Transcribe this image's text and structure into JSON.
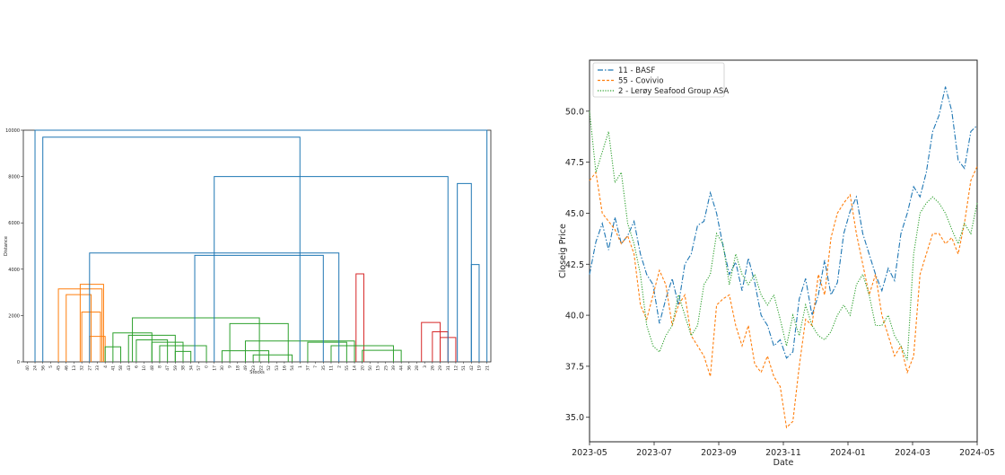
{
  "chart_data": [
    {
      "type": "dendrogram",
      "xlabel": "Stocks",
      "ylabel": "Distance",
      "ylim": [
        0,
        10000
      ],
      "yticks": [
        0,
        2000,
        4000,
        6000,
        8000,
        10000
      ],
      "leaves": [
        "40",
        "24",
        "56",
        "5",
        "45",
        "46",
        "13",
        "32",
        "27",
        "33",
        "4",
        "41",
        "58",
        "43",
        "6",
        "10",
        "48",
        "8",
        "47",
        "59",
        "38",
        "34",
        "57",
        "0",
        "17",
        "30",
        "9",
        "18",
        "49",
        "23",
        "22",
        "52",
        "53",
        "16",
        "54",
        "1",
        "37",
        "7",
        "35",
        "11",
        "2",
        "55",
        "14",
        "20",
        "50",
        "15",
        "25",
        "39",
        "44",
        "36",
        "28",
        "3",
        "26",
        "29",
        "31",
        "12",
        "51",
        "42",
        "19",
        "21"
      ],
      "merges": [
        {
          "a": 42.2,
          "b": 43.2,
          "h": 3800,
          "color": "#d62728"
        },
        {
          "a": 50.6,
          "b": 53.0,
          "h": 1700,
          "color": "#d62728"
        },
        {
          "a": 52.0,
          "b": 54.0,
          "h": 1300,
          "color": "#d62728"
        },
        {
          "a": 53.0,
          "b": 55.0,
          "h": 1050,
          "color": "#d62728"
        },
        {
          "a": 6.8,
          "b": 9.8,
          "h": 3350,
          "color": "#ff7f0e"
        },
        {
          "a": 4.0,
          "b": 9.6,
          "h": 3150,
          "color": "#ff7f0e"
        },
        {
          "a": 5.0,
          "b": 8.2,
          "h": 2900,
          "color": "#ff7f0e"
        },
        {
          "a": 7.0,
          "b": 9.4,
          "h": 2150,
          "color": "#ff7f0e"
        },
        {
          "a": 8.0,
          "b": 10.0,
          "h": 1100,
          "color": "#ff7f0e"
        },
        {
          "a": 13.5,
          "b": 29.8,
          "h": 1900,
          "color": "#2ca02c"
        },
        {
          "a": 11.0,
          "b": 16.0,
          "h": 1250,
          "color": "#2ca02c"
        },
        {
          "a": 13.0,
          "b": 19.0,
          "h": 1150,
          "color": "#2ca02c"
        },
        {
          "a": 14.0,
          "b": 18.0,
          "h": 950,
          "color": "#2ca02c"
        },
        {
          "a": 16.0,
          "b": 20.0,
          "h": 850,
          "color": "#2ca02c"
        },
        {
          "a": 17.0,
          "b": 23.0,
          "h": 700,
          "color": "#2ca02c"
        },
        {
          "a": 10.0,
          "b": 12.0,
          "h": 650,
          "color": "#2ca02c"
        },
        {
          "a": 19.0,
          "b": 21.0,
          "h": 450,
          "color": "#2ca02c"
        },
        {
          "a": 26.0,
          "b": 33.5,
          "h": 1650,
          "color": "#2ca02c"
        },
        {
          "a": 28.0,
          "b": 42.0,
          "h": 900,
          "color": "#2ca02c"
        },
        {
          "a": 25.0,
          "b": 31.0,
          "h": 480,
          "color": "#2ca02c"
        },
        {
          "a": 29.0,
          "b": 34.0,
          "h": 300,
          "color": "#2ca02c"
        },
        {
          "a": 36.0,
          "b": 41.0,
          "h": 850,
          "color": "#2ca02c"
        },
        {
          "a": 39.0,
          "b": 47.0,
          "h": 700,
          "color": "#2ca02c"
        },
        {
          "a": 43.0,
          "b": 48.0,
          "h": 500,
          "color": "#2ca02c"
        },
        {
          "a": 55.2,
          "b": 57.0,
          "h": 7700,
          "color": "#1f77b4"
        },
        {
          "a": 57.0,
          "b": 58.0,
          "h": 4200,
          "color": "#1f77b4"
        },
        {
          "a": 24.0,
          "b": 54.0,
          "h": 8000,
          "color": "#1f77b4"
        },
        {
          "a": 21.5,
          "b": 38.0,
          "h": 4600,
          "color": "#1f77b4"
        },
        {
          "a": 8.0,
          "b": 40.0,
          "h": 4700,
          "color": "#1f77b4"
        },
        {
          "a": 2.0,
          "b": 35.0,
          "h": 9700,
          "color": "#1f77b4"
        },
        {
          "a": 1.0,
          "b": 59.0,
          "h": 10000,
          "color": "#1f77b4"
        }
      ]
    },
    {
      "type": "line",
      "xlabel": "Date",
      "ylabel": "Closeig Price",
      "xticks": [
        "2023-05",
        "2023-07",
        "2023-09",
        "2023-11",
        "2024-01",
        "2024-03",
        "2024-05"
      ],
      "ylim": [
        33.8,
        52.5
      ],
      "yticks": [
        35.0,
        37.5,
        40.0,
        42.5,
        45.0,
        47.5,
        50.0
      ],
      "grid": false,
      "legend_position": "top-left",
      "series": [
        {
          "name": "11 - BASF",
          "color": "#1f77b4",
          "dash": "6,2,1.5,2",
          "values": [
            42.0,
            43.6,
            44.5,
            43.2,
            44.8,
            43.5,
            43.9,
            44.6,
            43.0,
            42.0,
            41.5,
            39.6,
            40.8,
            41.8,
            40.5,
            42.5,
            43.0,
            44.4,
            44.6,
            46.0,
            45.0,
            43.4,
            42.0,
            42.6,
            41.2,
            42.8,
            41.6,
            40.0,
            39.5,
            38.5,
            38.8,
            37.9,
            38.2,
            40.8,
            41.8,
            40.0,
            41.0,
            42.7,
            41.0,
            41.6,
            44.0,
            45.1,
            45.8,
            44.0,
            43.0,
            42.0,
            41.2,
            42.3,
            41.7,
            44.0,
            45.0,
            46.3,
            45.8,
            47.0,
            49.0,
            49.8,
            51.2,
            50.0,
            47.6,
            47.2,
            49.0,
            49.3
          ]
        },
        {
          "name": "55 - Covivio",
          "color": "#ff7f0e",
          "dash": "3,2",
          "values": [
            46.6,
            47.0,
            45.0,
            44.6,
            44.2,
            43.5,
            43.9,
            43.0,
            40.5,
            39.8,
            41.0,
            42.2,
            41.5,
            39.5,
            40.5,
            41.0,
            39.0,
            38.5,
            38.0,
            37.0,
            40.5,
            40.8,
            41.0,
            39.5,
            38.5,
            39.5,
            37.6,
            37.2,
            38.0,
            37.0,
            36.5,
            34.5,
            34.8,
            37.5,
            39.8,
            39.5,
            42.0,
            41.0,
            43.8,
            45.0,
            45.5,
            45.9,
            44.0,
            42.5,
            41.0,
            42.0,
            40.0,
            39.0,
            38.0,
            38.5,
            37.2,
            38.0,
            42.0,
            43.0,
            44.0,
            44.0,
            43.5,
            43.8,
            43.0,
            44.5,
            46.6,
            47.3
          ]
        },
        {
          "name": "2   - Lerøy Seafood Group ASA",
          "color": "#2ca02c",
          "dash": "1.2,1.6",
          "values": [
            50.0,
            47.0,
            48.0,
            49.0,
            46.5,
            47.0,
            44.5,
            43.5,
            42.0,
            39.5,
            38.5,
            38.2,
            39.0,
            39.5,
            41.0,
            40.0,
            39.0,
            39.5,
            41.5,
            42.0,
            44.0,
            43.5,
            41.5,
            43.0,
            42.0,
            41.5,
            42.0,
            41.0,
            40.5,
            41.0,
            39.8,
            38.5,
            40.0,
            39.0,
            40.5,
            39.5,
            39.0,
            38.8,
            39.2,
            40.0,
            40.5,
            40.0,
            41.5,
            42.0,
            41.0,
            39.5,
            39.5,
            40.0,
            39.0,
            38.5,
            37.8,
            43.0,
            45.0,
            45.5,
            45.8,
            45.5,
            45.0,
            44.2,
            43.5,
            44.5,
            44.0,
            45.5
          ]
        }
      ]
    }
  ]
}
